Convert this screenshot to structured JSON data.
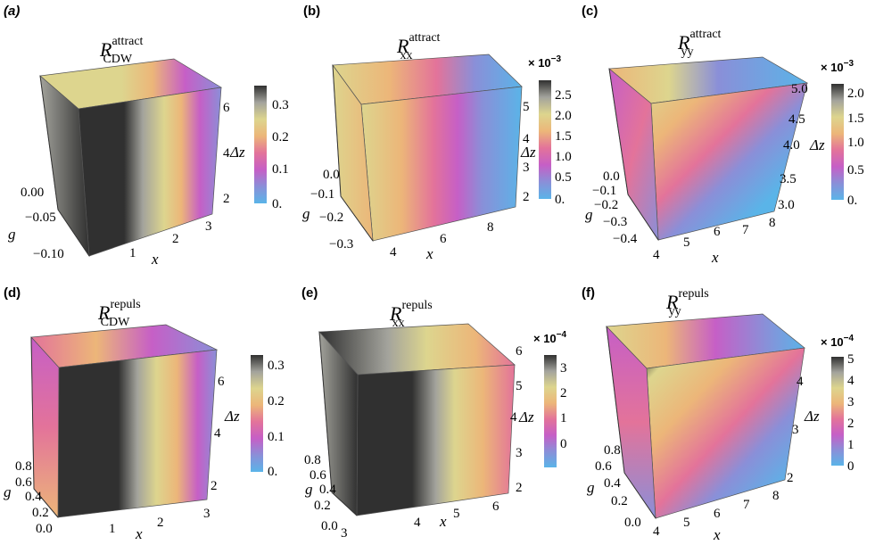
{
  "colorbar_palette": [
    "#5ab4e8",
    "#8a8fd8",
    "#c65fc6",
    "#e3739a",
    "#ecb679",
    "#ddd58e",
    "#a3a39c",
    "#303030"
  ],
  "panels": [
    {
      "label": "(a)",
      "label_italic": true,
      "title_base": "R",
      "title_sub": "CDW",
      "title_sup": "attract",
      "chart_data": {
        "type": "heatmap",
        "x_label": "x",
        "y_label": "g",
        "z_label": "Δz",
        "x_ticks": [
          "1",
          "2",
          "3"
        ],
        "g_ticks": [
          "0.00",
          "−0.05",
          "−0.10"
        ],
        "z_ticks": [
          "2",
          "4",
          "6"
        ],
        "colorbar_ticks": [
          "0.",
          "0.1",
          "0.2",
          "0.3"
        ],
        "colorbar_multiplier": "",
        "colorbar_range": [
          0,
          0.35
        ]
      }
    },
    {
      "label": "(b)",
      "label_italic": false,
      "title_base": "R",
      "title_sub": "xx",
      "title_sup": "attract",
      "chart_data": {
        "type": "heatmap",
        "x_label": "x",
        "y_label": "g",
        "z_label": "Δz",
        "x_ticks": [
          "4",
          "6",
          "8"
        ],
        "g_ticks": [
          "0.0",
          "−0.1",
          "−0.2",
          "−0.3"
        ],
        "z_ticks": [
          "2",
          "3",
          "4",
          "5"
        ],
        "colorbar_ticks": [
          "0.",
          "0.5",
          "1.0",
          "1.5",
          "2.0",
          "2.5"
        ],
        "colorbar_multiplier": "× 10",
        "colorbar_exponent": "−3",
        "colorbar_range": [
          0,
          2.8
        ]
      }
    },
    {
      "label": "(c)",
      "label_italic": false,
      "title_base": "R",
      "title_sub": "yy",
      "title_sup": "attract",
      "chart_data": {
        "type": "heatmap",
        "x_label": "x",
        "y_label": "g",
        "z_label": "Δz",
        "x_ticks": [
          "4",
          "5",
          "6",
          "7",
          "8"
        ],
        "g_ticks": [
          "0.0",
          "−0.1",
          "−0.2",
          "−0.3",
          "−0.4"
        ],
        "z_ticks": [
          "3.0",
          "3.5",
          "4.0",
          "4.5",
          "5.0"
        ],
        "colorbar_ticks": [
          "0.",
          "0.5",
          "1.0",
          "1.5",
          "2.0"
        ],
        "colorbar_multiplier": "× 10",
        "colorbar_exponent": "−3",
        "colorbar_range": [
          0,
          2.2
        ]
      }
    },
    {
      "label": "(d)",
      "label_italic": false,
      "title_base": "R",
      "title_sub": "CDW",
      "title_sup": "repuls",
      "chart_data": {
        "type": "heatmap",
        "x_label": "x",
        "y_label": "g",
        "z_label": "Δz",
        "x_ticks": [
          "1",
          "2",
          "3"
        ],
        "g_ticks": [
          "0.0",
          "0.2",
          "0.4",
          "0.6",
          "0.8"
        ],
        "z_ticks": [
          "2",
          "4",
          "6"
        ],
        "colorbar_ticks": [
          "0.",
          "0.1",
          "0.2",
          "0.3"
        ],
        "colorbar_multiplier": "",
        "colorbar_range": [
          0,
          0.32
        ]
      }
    },
    {
      "label": "(e)",
      "label_italic": false,
      "title_base": "R",
      "title_sub": "xx",
      "title_sup": "repuls",
      "chart_data": {
        "type": "heatmap",
        "x_label": "x",
        "y_label": "g",
        "z_label": "Δz",
        "x_ticks": [
          "3",
          "4",
          "5",
          "6"
        ],
        "g_ticks": [
          "0.0",
          "0.2",
          "0.4",
          "0.6",
          "0.8"
        ],
        "z_ticks": [
          "2",
          "3",
          "4",
          "5",
          "6"
        ],
        "colorbar_ticks": [
          "0",
          "1",
          "2",
          "3"
        ],
        "colorbar_multiplier": "× 10",
        "colorbar_exponent": "−4",
        "colorbar_range": [
          -0.6,
          3.5
        ]
      }
    },
    {
      "label": "(f)",
      "label_italic": false,
      "title_base": "R",
      "title_sub": "yy",
      "title_sup": "repuls",
      "chart_data": {
        "type": "heatmap",
        "x_label": "x",
        "y_label": "g",
        "z_label": "Δz",
        "x_ticks": [
          "4",
          "5",
          "6",
          "7",
          "8"
        ],
        "g_ticks": [
          "0.0",
          "0.2",
          "0.4",
          "0.6",
          "0.8"
        ],
        "z_ticks": [
          "2",
          "3",
          "4"
        ],
        "colorbar_ticks": [
          "0",
          "1",
          "2",
          "3",
          "4",
          "5"
        ],
        "colorbar_multiplier": "× 10",
        "colorbar_exponent": "−4",
        "colorbar_range": [
          0,
          5
        ]
      }
    }
  ]
}
